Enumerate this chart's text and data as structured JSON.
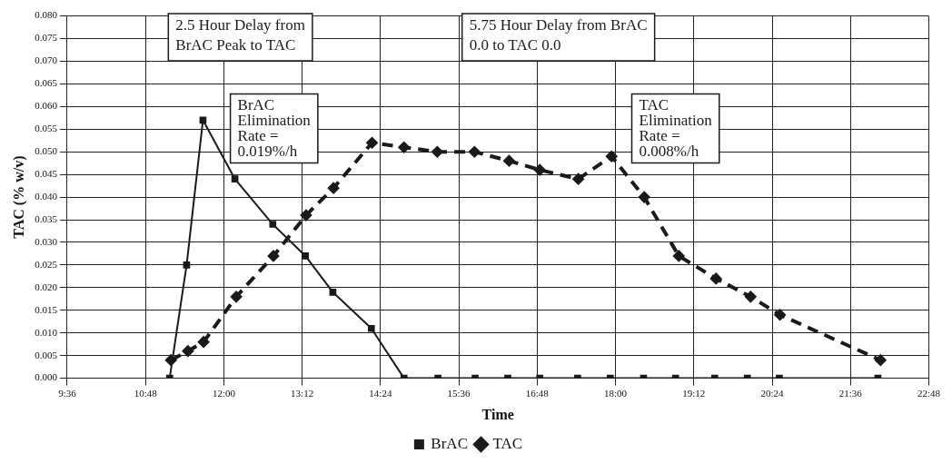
{
  "chart_data": {
    "type": "line",
    "xlabel": "Time",
    "ylabel": "TAC (% w/v)",
    "xlim": [
      9.6,
      22.8
    ],
    "xticks": [
      {
        "value": 9.6,
        "label": "9:36"
      },
      {
        "value": 10.8,
        "label": "10:48"
      },
      {
        "value": 12,
        "label": "12:00"
      },
      {
        "value": 13.2,
        "label": "13:12"
      },
      {
        "value": 14.4,
        "label": "14:24"
      },
      {
        "value": 15.6,
        "label": "15:36"
      },
      {
        "value": 16.8,
        "label": "16:48"
      },
      {
        "value": 18,
        "label": "18:00"
      },
      {
        "value": 19.2,
        "label": "19:12"
      },
      {
        "value": 20.4,
        "label": "20:24"
      },
      {
        "value": 21.6,
        "label": "21:36"
      },
      {
        "value": 22.8,
        "label": "22:48"
      }
    ],
    "ylim": [
      0,
      0.08
    ],
    "yticks": [
      {
        "value": 0,
        "label": "0.000"
      },
      {
        "value": 0.005,
        "label": "0.005"
      },
      {
        "value": 0.01,
        "label": "0.010"
      },
      {
        "value": 0.015,
        "label": "0.015"
      },
      {
        "value": 0.02,
        "label": "0.020"
      },
      {
        "value": 0.025,
        "label": "0.025"
      },
      {
        "value": 0.03,
        "label": "0.030"
      },
      {
        "value": 0.035,
        "label": "0.035"
      },
      {
        "value": 0.04,
        "label": "0.040"
      },
      {
        "value": 0.045,
        "label": "0.045"
      },
      {
        "value": 0.05,
        "label": "0.050"
      },
      {
        "value": 0.055,
        "label": "0.055"
      },
      {
        "value": 0.06,
        "label": "0.060"
      },
      {
        "value": 0.065,
        "label": "0.065"
      },
      {
        "value": 0.07,
        "label": "0.070"
      },
      {
        "value": 0.075,
        "label": "0.075"
      },
      {
        "value": 0.08,
        "label": "0.080"
      }
    ],
    "grid": true,
    "legend": "bottom",
    "series": [
      {
        "name": "BrAC",
        "color": "#1a1a1a",
        "marker": "square",
        "line_style": "solid",
        "x": [
          11.17,
          11.43,
          11.68,
          12.17,
          12.75,
          13.25,
          13.67,
          14.26,
          14.76,
          15.28,
          15.85,
          16.35,
          16.84,
          17.42,
          17.92,
          18.43,
          18.92,
          19.52,
          20.02,
          20.51,
          22.02
        ],
        "values": [
          0,
          0.025,
          0.057,
          0.044,
          0.034,
          0.027,
          0.019,
          0.011,
          0,
          0,
          0,
          0,
          0,
          0,
          0,
          0,
          0,
          0,
          0,
          0,
          0
        ]
      },
      {
        "name": "TAC",
        "color": "#1a1a1a",
        "marker": "diamond",
        "line_style": "dashed",
        "x": [
          11.19,
          11.45,
          11.69,
          12.19,
          12.76,
          13.26,
          13.68,
          14.27,
          14.76,
          15.27,
          15.84,
          16.37,
          16.84,
          17.43,
          17.94,
          18.44,
          18.97,
          19.54,
          20.07,
          20.52,
          22.06
        ],
        "values": [
          0.004,
          0.006,
          0.008,
          0.018,
          0.027,
          0.036,
          0.042,
          0.052,
          0.051,
          0.05,
          0.05,
          0.048,
          0.046,
          0.044,
          0.049,
          0.04,
          0.027,
          0.022,
          0.018,
          0.014,
          0.004
        ]
      }
    ],
    "annotations": [
      "2.5 Hour Delay from\nBrAC Peak to TAC",
      "5.75 Hour Delay from BrAC\n0.0 to TAC 0.0",
      "BrAC\nElimination\nRate =\n0.019%/h",
      "TAC\nElimination\nRate =\n0.008%/h"
    ]
  }
}
